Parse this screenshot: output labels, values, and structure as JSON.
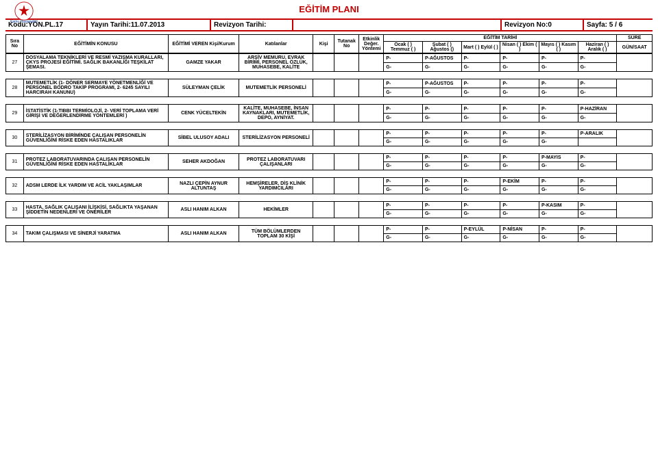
{
  "title": "EĞİTİM PLANI",
  "logo_caption": "Kamu Hastaneleri",
  "meta": {
    "kodu_label": "Kodu:",
    "kodu": "YÖN.PL.17",
    "yayin_label": "Yayın Tarihi:",
    "yayin": "11.07.2013",
    "rev_tarihi_label": "Revizyon Tarihi:",
    "rev_tarihi": "",
    "rev_no_label": "Revizyon No:",
    "rev_no": "0",
    "sayfa_label": "Sayfa:",
    "sayfa": "5 / 6"
  },
  "head": {
    "sira": "Sıra No",
    "konu": "EĞİTİMİN KONUSU",
    "veren": "EĞİTİMİ VEREN Kişi/Kurum",
    "kat": "Katılanlar",
    "kisi": "Kişi",
    "tutanak": "Tutanak No",
    "etkinlik": "Etkinlik Değer. Yöntemi",
    "tarih": "EĞİTİM TARİHİ",
    "sure": "SÜRE",
    "gun": "GÜN/SAAT",
    "months": [
      "Ocak ( ) Temmuz ( )",
      "Şubat ( ) Ağustos ()",
      "Mart ( ) Eylül ( )",
      "Nisan ( ) Ekim ( )",
      "Mayıs ( ) Kasım ( )",
      "Haziran ( ) Aralık ( )"
    ]
  },
  "rows": [
    {
      "no": "27",
      "topic": "DOSYALAMA TEKNİKLERİ VE RESMİ YAZIŞMA KURALLARI, ÇKYS PROJESİ EĞİTİMİ. SAĞLIK BAKANLIĞI TEŞKİLAT ŞEMASI.",
      "trainer": "GAMZE YAKAR",
      "part": "ARŞİV MEMURU, EVRAK BİRİMİ, PERSONEL ÖZLÜK, MUHASEBE, KALİTE",
      "top": [
        "P-",
        "P-AĞUSTOS",
        "P-",
        "P-",
        "P-",
        "P-"
      ],
      "bot": [
        "G-",
        "G-",
        "G-",
        "G-",
        "G-",
        "G-"
      ],
      "sure": ""
    },
    {
      "no": "28",
      "topic": "MUTEMETLİK (1- DÖNER SERMAYE YÖNETMENLİĞİ VE PERSONEL BODRO TAKİP PROGRAMI, 2- 6245 SAYILI HARCIRAH KANUNU)",
      "trainer": "SÜLEYMAN ÇELİK",
      "part": "MUTEMETLİK PERSONELİ",
      "top": [
        "P-",
        "P-AĞUSTOS",
        "P-",
        "P-",
        "P-",
        "P-"
      ],
      "bot": [
        "G-",
        "G-",
        "G-",
        "G-",
        "G-",
        "G-"
      ],
      "sure": ""
    },
    {
      "no": "29",
      "topic": "İSTATİSTİK (1-TIBBI TERMİOLOJİ, 2- VERİ TOPLAMA VERİ GİRİŞİ VE DEĞERLENDİRME YÖNTEMLERİ )",
      "trainer": "CENK YÜCELTEKİN",
      "part": "KALİTE, MUHASEBE, İNSAN KAYNAKLARI, MUTEMETLİK, DEPO, AYNİYAT.",
      "top": [
        "P-",
        "P-",
        "P-",
        "P-",
        "P-",
        "P-HAZİRAN"
      ],
      "bot": [
        "G-",
        "G-",
        "G-",
        "G-",
        "G-",
        "G-"
      ],
      "sure": ""
    },
    {
      "no": "30",
      "topic": "STERİLİZASYON BİRİMİNDE ÇALIŞAN PERSONELİN GÜVENLİĞİNİ RİSKE EDEN HASTALIKLAR",
      "trainer": "SİBEL ULUSOY ADALI",
      "part": "STERİLİZASYON PERSONELİ",
      "top": [
        "P-",
        "P-",
        "P-",
        "P-",
        "P-",
        "P-ARALIK"
      ],
      "bot": [
        "G-",
        "G-",
        "G-",
        "G-",
        "G-",
        ""
      ],
      "sure": ""
    },
    {
      "no": "31",
      "topic": "PROTEZ LABORATUVARINDA ÇALIŞAN PERSONELİN GÜVENLİĞİNİ RİSKE EDEN HASTALIKLAR",
      "trainer": "SEHER AKDOĞAN",
      "part": "PROTEZ LABORATUVARI ÇALIŞANLARI",
      "top": [
        "P-",
        "P-",
        "P-",
        "P-",
        "P-MAYIS",
        "P-"
      ],
      "bot": [
        "G-",
        "G-",
        "G-",
        "G-",
        "G-",
        "G-"
      ],
      "sure": ""
    },
    {
      "no": "32",
      "topic": "ADSM LERDE İLK YARDIM VE ACİL YAKLAŞIMLAR",
      "trainer": "NAZLI ÇEPİN AYNUR ALTUNTAŞ",
      "part": "HEMŞİRELER, DİŞ KLİNİK YARDIMCILARI",
      "top": [
        "P-",
        "P-",
        "P-",
        "P-EKİM",
        "P-",
        "P-"
      ],
      "bot": [
        "G-",
        "G-",
        "G-",
        "G-",
        "G-",
        "G-"
      ],
      "sure": ""
    },
    {
      "no": "33",
      "topic": "HASTA, SAĞLIK ÇALIŞANI İLİŞKİSİ, SAĞLIKTA YAŞANAN ŞİDDETİN NEDENLERİ VE ÖNERİLER",
      "trainer": "ASLI HANIM ALKAN",
      "part": "HEKİMLER",
      "top": [
        "P-",
        "P-",
        "P-",
        "P-",
        "P-KASIM",
        "P-"
      ],
      "bot": [
        "G-",
        "G-",
        "G-",
        "G-",
        "G-",
        "G-"
      ],
      "sure": ""
    },
    {
      "no": "34",
      "topic": "TAKIM ÇALIŞMASI VE SİNERJİ YARATMA",
      "trainer": "ASLI HANIM ALKAN",
      "part": "TÜM BÖLÜMLERDEN TOPLAM 30 KİŞİ",
      "top": [
        "P-",
        "P-",
        "P-EYLÜL",
        "P-NİSAN",
        "P-",
        "P-"
      ],
      "bot": [
        "G-",
        "G-",
        "G-",
        "G-",
        "G-",
        "G-"
      ],
      "sure": ""
    }
  ]
}
